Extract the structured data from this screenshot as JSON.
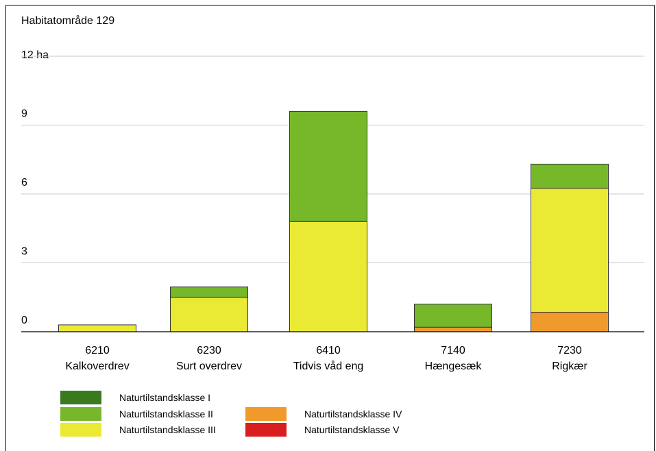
{
  "chart_data": {
    "type": "bar",
    "stacked": true,
    "title": "Habitatområde 129",
    "y_unit_label": "12 ha",
    "ylim": [
      0,
      12
    ],
    "yticks": [
      "0",
      "3",
      "6",
      "9"
    ],
    "grid": true,
    "categories": [
      {
        "code": "6210",
        "name": "Kalkoverdrev"
      },
      {
        "code": "6230",
        "name": "Surt overdrev"
      },
      {
        "code": "6410",
        "name": "Tidvis våd eng"
      },
      {
        "code": "7140",
        "name": "Hængesæk"
      },
      {
        "code": "7230",
        "name": "Rigkær"
      }
    ],
    "series": [
      {
        "name": "Naturtilstandsklasse I",
        "color": "#3a7a1f",
        "values": [
          0,
          0,
          0,
          0,
          0
        ]
      },
      {
        "name": "Naturtilstandsklasse II",
        "color": "#76b82a",
        "values": [
          0,
          0.45,
          4.8,
          1.0,
          1.05
        ]
      },
      {
        "name": "Naturtilstandsklasse III",
        "color": "#eaea35",
        "values": [
          0.3,
          1.5,
          4.8,
          0,
          5.4
        ]
      },
      {
        "name": "Naturtilstandsklasse IV",
        "color": "#f09a2c",
        "values": [
          0,
          0,
          0,
          0.2,
          0.85
        ]
      },
      {
        "name": "Naturtilstandsklasse V",
        "color": "#d81e1e",
        "values": [
          0,
          0,
          0,
          0,
          0
        ]
      }
    ],
    "legend_placement": "bottom-left"
  }
}
